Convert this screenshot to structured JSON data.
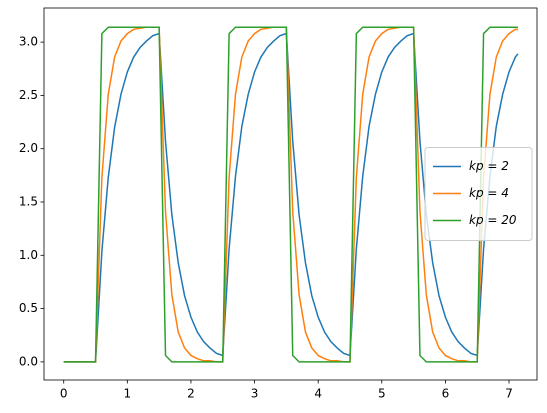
{
  "chart_data": {
    "type": "line",
    "x": [
      0,
      0.1,
      0.2,
      0.3,
      0.4,
      0.5,
      0.6,
      0.7,
      0.8,
      0.9,
      1.0,
      1.1,
      1.2,
      1.3,
      1.4,
      1.5,
      1.6,
      1.7,
      1.8,
      1.9,
      2.0,
      2.1,
      2.2,
      2.3,
      2.4,
      2.5,
      2.6,
      2.7,
      2.8,
      2.9,
      3.0,
      3.1,
      3.2,
      3.3,
      3.4,
      3.5,
      3.6,
      3.7,
      3.8,
      3.9,
      4.0,
      4.1,
      4.2,
      4.3,
      4.4,
      4.5,
      4.6,
      4.7,
      4.8,
      4.9,
      5.0,
      5.1,
      5.2,
      5.3,
      5.4,
      5.5,
      5.6,
      5.7,
      5.8,
      5.9,
      6.0,
      6.1,
      6.2,
      6.3,
      6.4,
      6.5,
      6.6,
      6.7,
      6.8,
      6.9,
      7.0,
      7.1,
      7.14
    ],
    "series": [
      {
        "name": "kp = 2",
        "color": "#1f77b4",
        "values": [
          0,
          0,
          0,
          0,
          0,
          0,
          1.04,
          1.73,
          2.2,
          2.51,
          2.72,
          2.86,
          2.95,
          3.01,
          3.06,
          3.08,
          2.07,
          1.38,
          0.93,
          0.62,
          0.42,
          0.28,
          0.19,
          0.13,
          0.08,
          0.06,
          1.06,
          1.74,
          2.21,
          2.51,
          2.72,
          2.86,
          2.95,
          3.01,
          3.06,
          3.08,
          2.07,
          1.38,
          0.93,
          0.62,
          0.42,
          0.28,
          0.19,
          0.13,
          0.08,
          0.06,
          1.06,
          1.74,
          2.21,
          2.51,
          2.72,
          2.86,
          2.95,
          3.01,
          3.06,
          3.08,
          2.07,
          1.38,
          0.93,
          0.62,
          0.42,
          0.28,
          0.19,
          0.13,
          0.08,
          0.06,
          1.06,
          1.74,
          2.21,
          2.51,
          2.72,
          2.86,
          2.89
        ]
      },
      {
        "name": "kp = 4",
        "color": "#ff7f0e",
        "values": [
          0,
          0,
          0,
          0,
          0,
          0,
          1.73,
          2.51,
          2.86,
          3.01,
          3.08,
          3.12,
          3.13,
          3.14,
          3.14,
          3.14,
          1.41,
          0.63,
          0.28,
          0.13,
          0.06,
          0.03,
          0.01,
          0.01,
          0,
          0,
          1.73,
          2.51,
          2.86,
          3.01,
          3.08,
          3.12,
          3.13,
          3.14,
          3.14,
          3.14,
          1.41,
          0.63,
          0.28,
          0.13,
          0.06,
          0.03,
          0.01,
          0.01,
          0,
          0,
          1.73,
          2.51,
          2.86,
          3.01,
          3.08,
          3.12,
          3.13,
          3.14,
          3.14,
          3.14,
          1.41,
          0.63,
          0.28,
          0.13,
          0.06,
          0.03,
          0.01,
          0.01,
          0,
          0,
          1.73,
          2.51,
          2.86,
          3.01,
          3.08,
          3.12,
          3.12
        ]
      },
      {
        "name": "kp = 20",
        "color": "#2ca02c",
        "values": [
          0,
          0,
          0,
          0,
          0,
          0,
          3.08,
          3.14,
          3.14,
          3.14,
          3.14,
          3.14,
          3.14,
          3.14,
          3.14,
          3.14,
          0.06,
          0,
          0,
          0,
          0,
          0,
          0,
          0,
          0,
          0,
          3.08,
          3.14,
          3.14,
          3.14,
          3.14,
          3.14,
          3.14,
          3.14,
          3.14,
          3.14,
          0.06,
          0,
          0,
          0,
          0,
          0,
          0,
          0,
          0,
          0,
          3.08,
          3.14,
          3.14,
          3.14,
          3.14,
          3.14,
          3.14,
          3.14,
          3.14,
          3.14,
          0.06,
          0,
          0,
          0,
          0,
          0,
          0,
          0,
          0,
          0,
          3.08,
          3.14,
          3.14,
          3.14,
          3.14,
          3.14,
          3.14
        ]
      }
    ],
    "xlim": [
      -0.31,
      7.44
    ],
    "ylim": [
      -0.17,
      3.32
    ],
    "xticks": [
      0,
      1,
      2,
      3,
      4,
      5,
      6,
      7
    ],
    "yticks": [
      {
        "value": 0,
        "label": "0.0"
      },
      {
        "value": 0.5,
        "label": "0.5"
      },
      {
        "value": 1,
        "label": "1.0"
      },
      {
        "value": 1.5,
        "label": "1.5"
      },
      {
        "value": 2,
        "label": "2.0"
      },
      {
        "value": 2.5,
        "label": "2.5"
      },
      {
        "value": 3,
        "label": "3.0"
      }
    ],
    "legend": "center right"
  }
}
